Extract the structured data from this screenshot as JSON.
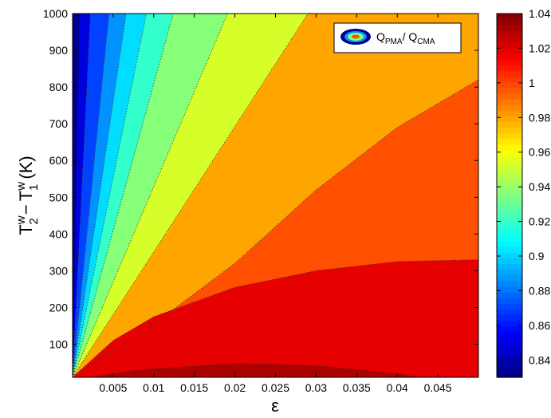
{
  "chart_data": {
    "type": "filled-contour",
    "title": "",
    "xlabel": "ε",
    "ylabel": {
      "base": "T",
      "term1_sup": "w",
      "term1_sub": "2",
      "minus": "−",
      "term2_sup": "w",
      "term2_sub": "1",
      "unit": "(K)"
    },
    "xlim": [
      0,
      0.05
    ],
    "ylim": [
      10,
      1000
    ],
    "xticks": [
      "0.005",
      "0.01",
      "0.015",
      "0.02",
      "0.025",
      "0.03",
      "0.035",
      "0.04",
      "0.045"
    ],
    "yticks": [
      "100",
      "200",
      "300",
      "400",
      "500",
      "600",
      "700",
      "800",
      "900",
      "1000"
    ],
    "legend": {
      "label_main": "Q",
      "label_sub1": "PMA",
      "label_slash": "/ Q",
      "label_sub2": "CMA",
      "position": "top-right"
    },
    "colorbar": {
      "range": [
        0.83,
        1.04
      ],
      "ticks": [
        "0.84",
        "0.86",
        "0.88",
        "0.9",
        "0.92",
        "0.94",
        "0.96",
        "0.98",
        "1",
        "1.02",
        "1.04"
      ],
      "colormap": "jet"
    },
    "levels": [
      0.83,
      0.845,
      0.86,
      0.875,
      0.89,
      0.905,
      0.92,
      0.935,
      0.95,
      0.965,
      0.98,
      1.0,
      1.015,
      1.03,
      1.04
    ],
    "level_colors": [
      "#00008f",
      "#0000dc",
      "#0042ff",
      "#0093ff",
      "#00ddff",
      "#33ffcc",
      "#86ff79",
      "#d6ff29",
      "#ffea00",
      "#ffa500",
      "#ff4f00",
      "#e60000",
      "#ad0000",
      "#800000"
    ],
    "boundaries_x_at_ymax": [
      0.0022,
      0.0045,
      0.0066,
      0.0091,
      0.0124,
      0.0191,
      0.029
    ],
    "boundary_1_00": [
      [
        0,
        10
      ],
      [
        0.01,
        155
      ],
      [
        0.02,
        320
      ],
      [
        0.03,
        520
      ],
      [
        0.04,
        690
      ],
      [
        0.05,
        820
      ]
    ],
    "boundary_1_015": [
      [
        0,
        10
      ],
      [
        0.005,
        110
      ],
      [
        0.01,
        175
      ],
      [
        0.02,
        255
      ],
      [
        0.03,
        300
      ],
      [
        0.04,
        325
      ],
      [
        0.05,
        330
      ]
    ],
    "boundary_1_03": [
      [
        0.002,
        10
      ],
      [
        0.008,
        30
      ],
      [
        0.02,
        48
      ],
      [
        0.03,
        42
      ],
      [
        0.04,
        20
      ],
      [
        0.043,
        10
      ]
    ]
  }
}
